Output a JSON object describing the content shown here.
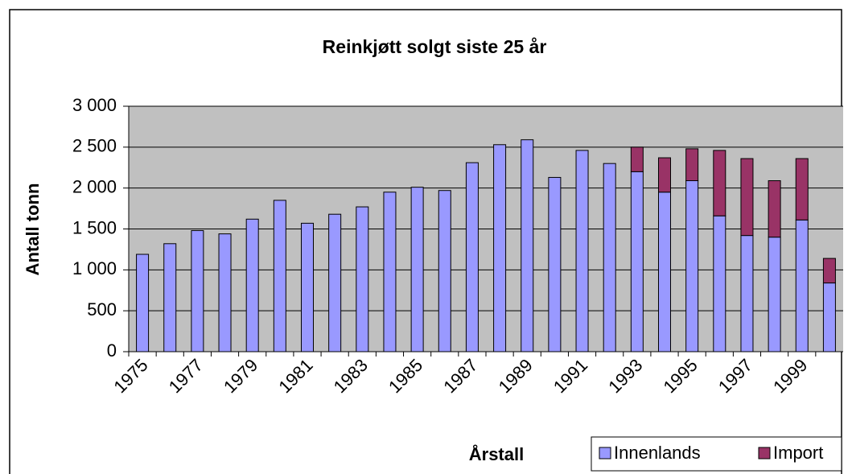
{
  "chart_data": {
    "type": "stacked_bar",
    "title": "Reinkjøtt solgt siste 25 år",
    "xlabel": "Årstall",
    "ylabel": "Antall tonn",
    "categories": [
      "1975",
      null,
      "1977",
      null,
      "1979",
      null,
      "1981",
      null,
      "1983",
      null,
      "1985",
      null,
      "1987",
      null,
      "1989",
      null,
      "1991",
      null,
      "1993",
      null,
      "1995",
      null,
      "1997",
      null,
      "1999",
      null
    ],
    "series": [
      {
        "name": "Innenlands",
        "color": "#9999ff",
        "values": [
          1190,
          1320,
          1480,
          1440,
          1620,
          1850,
          1570,
          1680,
          1770,
          1950,
          2010,
          1970,
          2310,
          2530,
          2590,
          2130,
          2460,
          2300,
          2200,
          1950,
          2090,
          1660,
          1420,
          1400,
          1610,
          840
        ]
      },
      {
        "name": "Import",
        "color": "#993366",
        "values": [
          0,
          0,
          0,
          0,
          0,
          0,
          0,
          0,
          0,
          0,
          0,
          0,
          0,
          0,
          0,
          0,
          0,
          0,
          300,
          420,
          390,
          800,
          940,
          690,
          750,
          300
        ]
      }
    ],
    "ylim": [
      0,
      3000
    ],
    "yticks": [
      0,
      500,
      {
        "value": 1000,
        "label": "1 000"
      },
      {
        "value": 1500,
        "label": "1 500"
      },
      {
        "value": 2000,
        "label": "2 000"
      },
      {
        "value": 2500,
        "label": "2 500"
      },
      {
        "value": 3000,
        "label": "3 000"
      }
    ],
    "grid": true,
    "legend": "bottom-right"
  }
}
